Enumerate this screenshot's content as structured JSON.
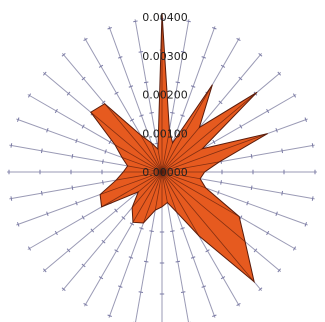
{
  "chart_data": {
    "type": "radar",
    "title": "",
    "radial_ticks": [
      "0.00000",
      "0.00100",
      "0.00200",
      "0.00300",
      "0.00400"
    ],
    "radial_tick_values": [
      0,
      0.001,
      0.002,
      0.003,
      0.004
    ],
    "rlim": [
      0,
      0.004
    ],
    "spoke_count": 36,
    "grid": false,
    "legend": "none",
    "series": [
      {
        "values": [
          0.0041,
          0.0011,
          0.0008,
          0.0026,
          0.0015,
          0.0032,
          0.0012,
          0.0029,
          0.0015,
          0.0011,
          0.001,
          0.0012,
          0.0023,
          0.0028,
          0.0037,
          0.0019,
          0.0011,
          0.0008,
          0.0009,
          0.001,
          0.0014,
          0.0015,
          0.0012,
          0.0008,
          0.0018,
          0.0017,
          0.0012,
          0.001,
          0.0009,
          0.0011,
          0.0014,
          0.0024,
          0.0023,
          0.0011,
          0.0008,
          0.0006
        ],
        "color": "#e65a1f"
      }
    ],
    "colors": {
      "fill": "#e65a1f",
      "outline": "#5a1c0c",
      "spoke": "#9a9ab5",
      "spoke_marker": "#7a7aa5"
    }
  }
}
